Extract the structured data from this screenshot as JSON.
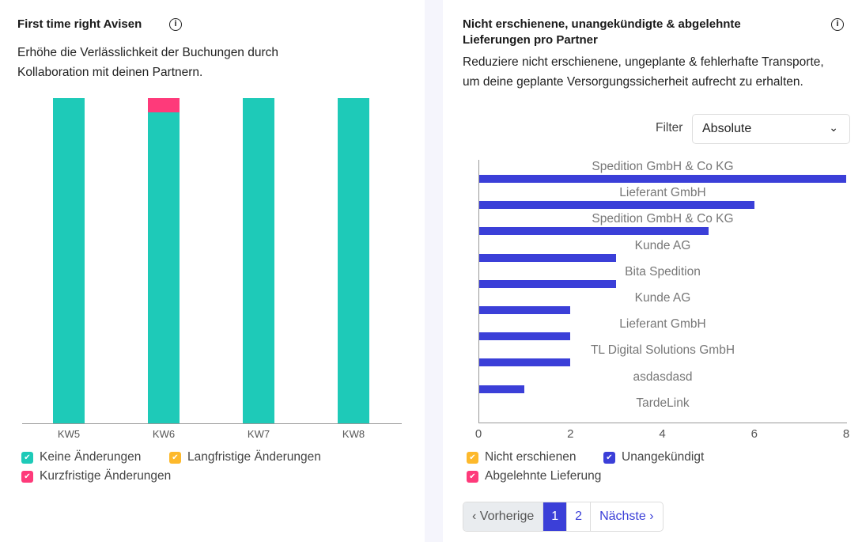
{
  "left": {
    "title": "First time right Avisen",
    "description": "Erhöhe die Verlässlichkeit der Buchungen durch Kollaboration mit deinen Partnern.",
    "legend": [
      {
        "label": "Keine Änderungen",
        "color": "#1ecab8"
      },
      {
        "label": "Langfristige Änderungen",
        "color": "#fdb92c"
      },
      {
        "label": "Kurzfristige Änderungen",
        "color": "#fe3a7a"
      }
    ]
  },
  "right": {
    "title": "Nicht erschienene, unangekündigte & abgelehnte Lieferungen pro Partner",
    "description": "Reduziere nicht erschienene, ungeplante & fehlerhafte Transporte, um deine geplante Versorgungssicherheit aufrecht zu erhalten.",
    "filter_label": "Filter",
    "filter_value": "Absolute",
    "legend": [
      {
        "label": "Nicht erschienen",
        "color": "#fdb92c"
      },
      {
        "label": "Unangekündigt",
        "color": "#3b3fd8"
      },
      {
        "label": "Abgelehnte Lieferung",
        "color": "#fe3a7a"
      }
    ],
    "pagination": {
      "prev": "‹ Vorherige",
      "pages": [
        "1",
        "2"
      ],
      "current": "1",
      "next": "Nächste ›"
    }
  },
  "chart_data": [
    {
      "type": "bar",
      "stacked": true,
      "title": "First time right Avisen",
      "categories": [
        "KW5",
        "KW6",
        "KW7",
        "KW8"
      ],
      "ylim": [
        0,
        100
      ],
      "series": [
        {
          "name": "Keine Änderungen",
          "values": [
            100,
            95.6,
            100,
            100
          ]
        },
        {
          "name": "Langfristige Änderungen",
          "values": [
            0,
            0,
            0,
            0
          ]
        },
        {
          "name": "Kurzfristige Änderungen",
          "values": [
            0,
            4.4,
            0,
            0
          ]
        }
      ]
    },
    {
      "type": "bar",
      "orientation": "horizontal",
      "title": "Nicht erschienene, unangekündigte & abgelehnte Lieferungen pro Partner",
      "categories": [
        "Spedition GmbH & Co KG",
        "Lieferant GmbH",
        "Spedition GmbH & Co KG",
        "Kunde AG",
        "Bita Spedition",
        "Kunde AG",
        "Lieferant GmbH",
        "TL Digital Solutions GmbH",
        "asdasdasd",
        "TardeLink"
      ],
      "series": [
        {
          "name": "Unangekündigt",
          "values": [
            8,
            6,
            5,
            3,
            3,
            2,
            2,
            2,
            1,
            0
          ]
        }
      ],
      "xlim": [
        0,
        8
      ],
      "xticks": [
        "0",
        "2",
        "4",
        "6",
        "8"
      ]
    }
  ]
}
